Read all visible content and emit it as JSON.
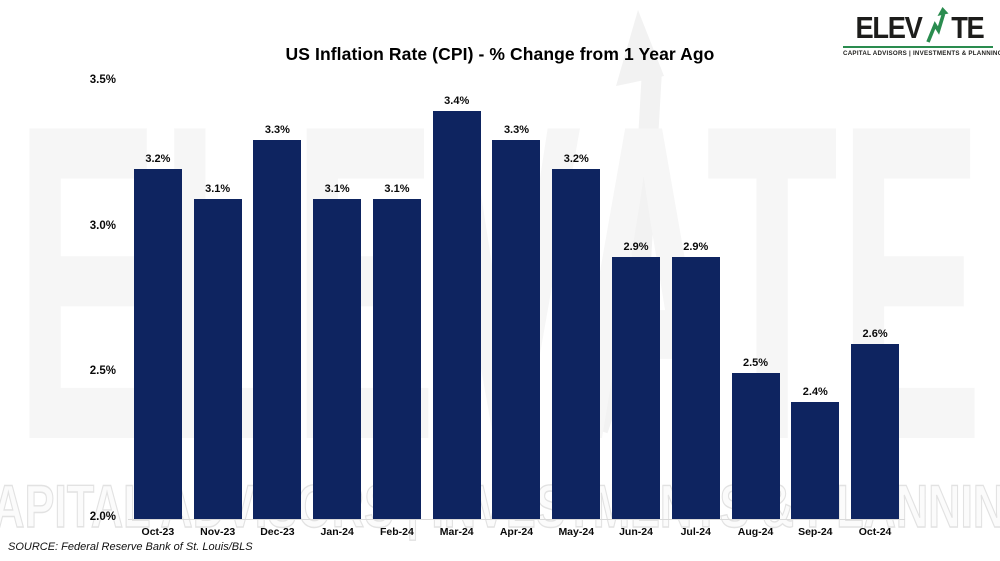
{
  "header": {
    "title": "US Inflation Rate (CPI) - % Change from 1 Year Ago"
  },
  "logo": {
    "word_start": "ELEV",
    "word_end": "TE",
    "tagline": "CAPITAL ADVISORS | INVESTMENTS & PLANNING",
    "green": "#2a8c4f",
    "text_color": "#1d1d1b",
    "arrow_icon": "up-trend-arrow"
  },
  "watermark": {
    "word": "ELEVATE",
    "tagline": "CAPITAL ADVISORS | INVESTMENTS & PLANNING"
  },
  "chart_data": {
    "type": "bar",
    "title": "US Inflation Rate (CPI) - % Change from 1 Year Ago",
    "categories": [
      "Oct-23",
      "Nov-23",
      "Dec-23",
      "Jan-24",
      "Feb-24",
      "Mar-24",
      "Apr-24",
      "May-24",
      "Jun-24",
      "Jul-24",
      "Aug-24",
      "Sep-24",
      "Oct-24"
    ],
    "values": [
      3.2,
      3.1,
      3.3,
      3.1,
      3.1,
      3.4,
      3.3,
      3.2,
      2.9,
      2.9,
      2.5,
      2.4,
      2.6
    ],
    "labels": [
      "3.2%",
      "3.1%",
      "3.3%",
      "3.1%",
      "3.1%",
      "3.4%",
      "3.3%",
      "3.2%",
      "2.9%",
      "2.9%",
      "2.5%",
      "2.4%",
      "2.6%"
    ],
    "xlabel": "",
    "ylabel": "",
    "ylim": [
      2.0,
      3.5
    ],
    "y_ticks": [
      "3.5%",
      "3.0%",
      "2.5%",
      "2.0%"
    ],
    "y_tick_values": [
      3.5,
      3.0,
      2.5,
      2.0
    ],
    "bar_color": "#0e2460",
    "grid": false,
    "legend": false,
    "data_labels": true
  },
  "footer": {
    "source": "SOURCE: Federal Reserve Bank of St. Louis/BLS"
  }
}
